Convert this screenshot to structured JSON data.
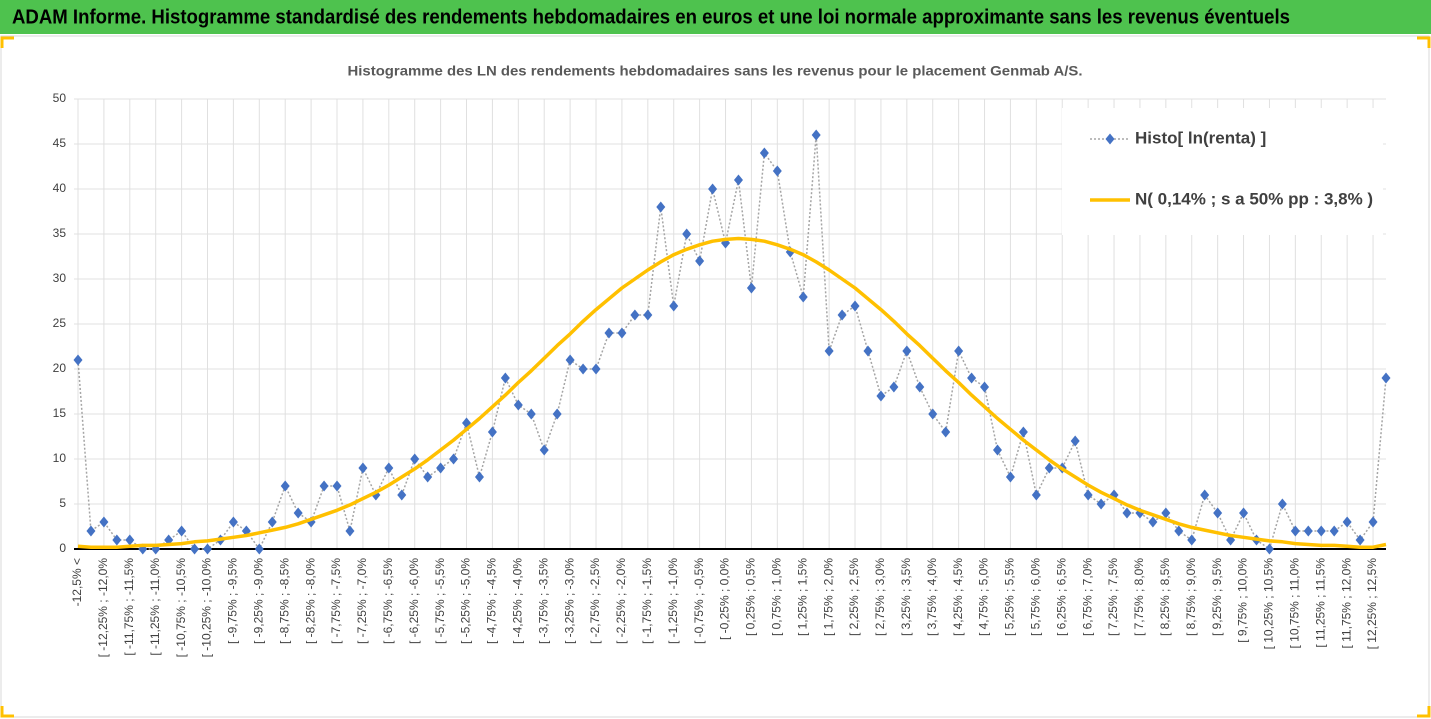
{
  "header": {
    "title": "ADAM Informe. Histogramme standardisé des rendements hebdomadaires en euros et une loi normale approximante sans les revenus éventuels"
  },
  "chart_data": {
    "type": "line",
    "title": "Histogramme des LN des rendements hebdomadaires sans les revenus pour le placement Genmab A/S.",
    "categories": [
      "-12,5% <",
      null,
      "[ -12,25% ; -12,0%",
      null,
      "[ -11,75% ; -11,5%",
      null,
      "[ -11,25% ; -11,0%",
      null,
      "[ -10,75% ; -10,5%",
      null,
      "[ -10,25% ; -10,0%",
      null,
      "[ -9,75% ; -9,5%",
      null,
      "[ -9,25% ; -9,0%",
      null,
      "[ -8,75% ; -8,5%",
      null,
      "[ -8,25% ; -8,0%",
      null,
      "[ -7,75% ; -7,5%",
      null,
      "[ -7,25% ; -7,0%",
      null,
      "[ -6,75% ; -6,5%",
      null,
      "[ -6,25% ; -6,0%",
      null,
      "[ -5,75% ; -5,5%",
      null,
      "[ -5,25% ; -5,0%",
      null,
      "[ -4,75% ; -4,5%",
      null,
      "[ -4,25% ; -4,0%",
      null,
      "[ -3,75% ; -3,5%",
      null,
      "[ -3,25% ; -3,0%",
      null,
      "[ -2,75% ; -2,5%",
      null,
      "[ -2,25% ; -2,0%",
      null,
      "[ -1,75% ; -1,5%",
      null,
      "[ -1,25% ; -1,0%",
      null,
      "[ -0,75% ; -0,5%",
      null,
      "[ -0,25% ; 0,0%",
      null,
      "[ 0,25% ; 0,5%",
      null,
      "[ 0,75% ; 1,0%",
      null,
      "[ 1,25% ; 1,5%",
      null,
      "[ 1,75% ; 2,0%",
      null,
      "[ 2,25% ; 2,5%",
      null,
      "[ 2,75% ; 3,0%",
      null,
      "[ 3,25% ; 3,5%",
      null,
      "[ 3,75% ; 4,0%",
      null,
      "[ 4,25% ; 4,5%",
      null,
      "[ 4,75% ; 5,0%",
      null,
      "[ 5,25% ; 5,5%",
      null,
      "[ 5,75% ; 6,0%",
      null,
      "[ 6,25% ; 6,5%",
      null,
      "[ 6,75% ; 7,0%",
      null,
      "[ 7,25% ; 7,5%",
      null,
      "[ 7,75% ; 8,0%",
      null,
      "[ 8,25% ; 8,5%",
      null,
      "[ 8,75% ; 9,0%",
      null,
      "[ 9,25% ; 9,5%",
      null,
      "[ 9,75% ; 10,0%",
      null,
      "[ 10,25% ; 10,5%",
      null,
      "[ 10,75% ; 11,0%",
      null,
      "[ 11,25% ; 11,5%",
      null,
      "[ 11,75% ; 12,0%",
      null,
      "[ 12,25% ; 12,5%",
      null
    ],
    "series": [
      {
        "name": "Histo[ ln(renta) ]",
        "color": "#4472c4",
        "line_color": "#a5a5a5",
        "dash": "dotted",
        "marker": "diamond",
        "values": [
          21,
          2,
          3,
          1,
          1,
          0,
          0,
          1,
          2,
          0,
          0,
          1,
          3,
          2,
          0,
          3,
          7,
          4,
          3,
          7,
          7,
          2,
          9,
          6,
          9,
          6,
          10,
          8,
          9,
          10,
          14,
          8,
          13,
          19,
          16,
          15,
          11,
          15,
          21,
          20,
          20,
          24,
          24,
          26,
          26,
          38,
          27,
          35,
          32,
          40,
          34,
          41,
          29,
          44,
          42,
          33,
          28,
          46,
          22,
          26,
          27,
          22,
          17,
          18,
          22,
          18,
          15,
          13,
          22,
          19,
          18,
          11,
          8,
          13,
          6,
          9,
          9,
          12,
          6,
          5,
          6,
          4,
          4,
          3,
          4,
          2,
          1,
          6,
          4,
          1,
          4,
          1,
          0,
          5,
          2,
          2,
          2,
          2,
          3,
          1,
          3,
          19
        ]
      },
      {
        "name": "N( 0,14% ; s a 50% pp : 3,8% )",
        "color": "#ffc000",
        "dash": "solid",
        "marker": "none",
        "values": [
          0.3,
          0.2,
          0.2,
          0.2,
          0.3,
          0.4,
          0.4,
          0.5,
          0.6,
          0.8,
          0.9,
          1.1,
          1.3,
          1.5,
          1.8,
          2.1,
          2.4,
          2.8,
          3.3,
          3.8,
          4.3,
          4.9,
          5.6,
          6.3,
          7.1,
          8.0,
          8.9,
          9.9,
          11.0,
          12.1,
          13.3,
          14.5,
          15.8,
          17.1,
          18.5,
          19.8,
          21.2,
          22.6,
          23.9,
          25.3,
          26.6,
          27.8,
          29.0,
          30.0,
          31.0,
          31.9,
          32.7,
          33.3,
          33.8,
          34.2,
          34.4,
          34.5,
          34.4,
          34.2,
          33.8,
          33.3,
          32.7,
          31.9,
          31.0,
          30.0,
          29.0,
          27.8,
          26.6,
          25.3,
          23.9,
          22.6,
          21.2,
          19.8,
          18.5,
          17.1,
          15.8,
          14.5,
          13.3,
          12.1,
          11.0,
          9.9,
          8.9,
          8.0,
          7.1,
          6.3,
          5.6,
          4.9,
          4.3,
          3.8,
          3.3,
          2.8,
          2.4,
          2.1,
          1.8,
          1.5,
          1.3,
          1.1,
          0.9,
          0.8,
          0.6,
          0.5,
          0.4,
          0.4,
          0.3,
          0.2,
          0.2,
          0.5
        ]
      }
    ],
    "ylim": [
      0,
      50
    ],
    "yticks": [
      0,
      5,
      10,
      15,
      20,
      25,
      30,
      35,
      40,
      45,
      50
    ],
    "grid": true,
    "legend": "upper right"
  }
}
